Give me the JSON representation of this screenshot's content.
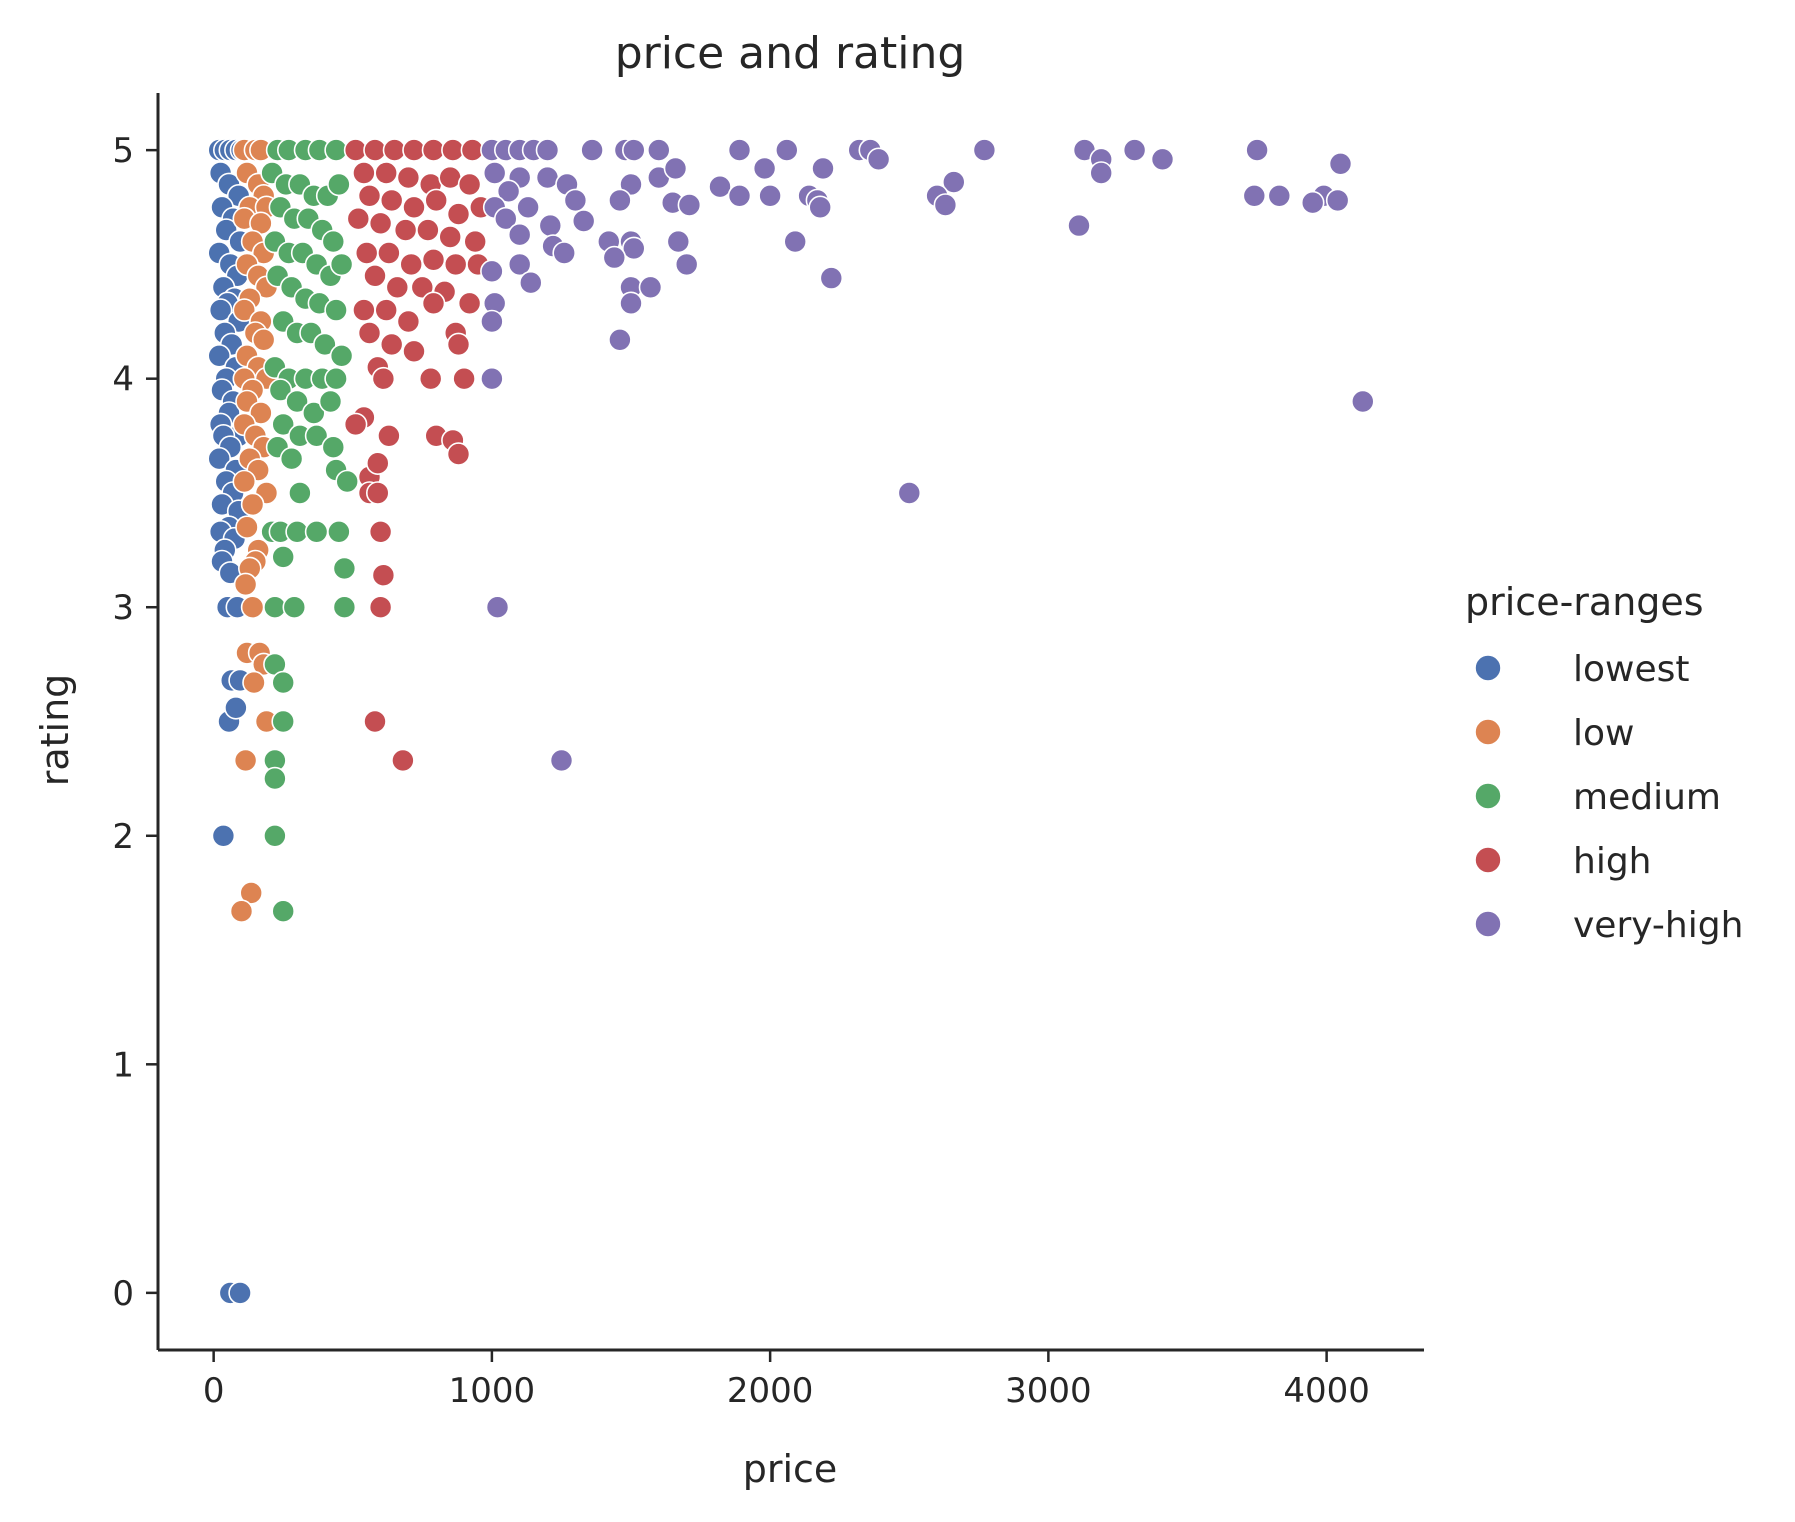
{
  "chart_data": {
    "type": "scatter",
    "title": "price and rating",
    "xlabel": "price",
    "ylabel": "rating",
    "xlim": [
      -200,
      4350
    ],
    "ylim": [
      -0.25,
      5.25
    ],
    "xticks": [
      0,
      1000,
      2000,
      3000,
      4000
    ],
    "xtick_labels": [
      "0",
      "1000",
      "2000",
      "3000",
      "4000"
    ],
    "yticks": [
      0,
      1,
      2,
      3,
      4,
      5
    ],
    "ytick_labels": [
      "0",
      "1",
      "2",
      "3",
      "4",
      "5"
    ],
    "grid": false,
    "legend": {
      "title": "price-ranges",
      "placement": "outside-right"
    },
    "series": [
      {
        "name": "lowest",
        "color": "#4c72b0",
        "points": [
          [
            20,
            5.0
          ],
          [
            40,
            5.0
          ],
          [
            60,
            5.0
          ],
          [
            80,
            5.0
          ],
          [
            100,
            5.0
          ],
          [
            25,
            4.9
          ],
          [
            55,
            4.85
          ],
          [
            90,
            4.8
          ],
          [
            30,
            4.75
          ],
          [
            70,
            4.7
          ],
          [
            45,
            4.65
          ],
          [
            95,
            4.6
          ],
          [
            20,
            4.55
          ],
          [
            60,
            4.5
          ],
          [
            85,
            4.45
          ],
          [
            35,
            4.4
          ],
          [
            75,
            4.35
          ],
          [
            50,
            4.33
          ],
          [
            25,
            4.3
          ],
          [
            90,
            4.25
          ],
          [
            40,
            4.2
          ],
          [
            65,
            4.15
          ],
          [
            20,
            4.1
          ],
          [
            80,
            4.05
          ],
          [
            45,
            4.0
          ],
          [
            30,
            3.95
          ],
          [
            70,
            3.9
          ],
          [
            55,
            3.85
          ],
          [
            25,
            3.8
          ],
          [
            90,
            3.75
          ],
          [
            35,
            3.75
          ],
          [
            60,
            3.7
          ],
          [
            20,
            3.65
          ],
          [
            80,
            3.6
          ],
          [
            45,
            3.55
          ],
          [
            70,
            3.5
          ],
          [
            30,
            3.45
          ],
          [
            90,
            3.42
          ],
          [
            55,
            3.35
          ],
          [
            25,
            3.33
          ],
          [
            75,
            3.3
          ],
          [
            40,
            3.25
          ],
          [
            30,
            3.2
          ],
          [
            60,
            3.15
          ],
          [
            50,
            3.0
          ],
          [
            85,
            3.0
          ],
          [
            65,
            2.68
          ],
          [
            95,
            2.68
          ],
          [
            55,
            2.5
          ],
          [
            80,
            2.56
          ],
          [
            35,
            2.0
          ],
          [
            60,
            0.0
          ],
          [
            95,
            0.0
          ]
        ]
      },
      {
        "name": "low",
        "color": "#dd8452",
        "points": [
          [
            110,
            5.0
          ],
          [
            150,
            5.0
          ],
          [
            170,
            5.0
          ],
          [
            120,
            4.9
          ],
          [
            160,
            4.85
          ],
          [
            180,
            4.8
          ],
          [
            130,
            4.75
          ],
          [
            190,
            4.75
          ],
          [
            110,
            4.7
          ],
          [
            170,
            4.68
          ],
          [
            140,
            4.6
          ],
          [
            180,
            4.55
          ],
          [
            120,
            4.5
          ],
          [
            160,
            4.45
          ],
          [
            190,
            4.4
          ],
          [
            130,
            4.35
          ],
          [
            110,
            4.3
          ],
          [
            170,
            4.25
          ],
          [
            150,
            4.2
          ],
          [
            180,
            4.17
          ],
          [
            120,
            4.1
          ],
          [
            160,
            4.05
          ],
          [
            110,
            4.0
          ],
          [
            190,
            4.0
          ],
          [
            140,
            3.95
          ],
          [
            120,
            3.9
          ],
          [
            170,
            3.85
          ],
          [
            110,
            3.8
          ],
          [
            150,
            3.75
          ],
          [
            180,
            3.7
          ],
          [
            130,
            3.65
          ],
          [
            160,
            3.6
          ],
          [
            110,
            3.55
          ],
          [
            190,
            3.5
          ],
          [
            140,
            3.45
          ],
          [
            120,
            3.35
          ],
          [
            160,
            3.25
          ],
          [
            150,
            3.2
          ],
          [
            130,
            3.17
          ],
          [
            115,
            3.1
          ],
          [
            140,
            3.0
          ],
          [
            120,
            2.8
          ],
          [
            165,
            2.8
          ],
          [
            180,
            2.75
          ],
          [
            145,
            2.67
          ],
          [
            190,
            2.5
          ],
          [
            115,
            2.33
          ],
          [
            135,
            1.75
          ],
          [
            100,
            1.67
          ]
        ]
      },
      {
        "name": "medium",
        "color": "#55a868",
        "points": [
          [
            230,
            5.0
          ],
          [
            270,
            5.0
          ],
          [
            330,
            5.0
          ],
          [
            380,
            5.0
          ],
          [
            440,
            5.0
          ],
          [
            210,
            4.9
          ],
          [
            260,
            4.85
          ],
          [
            310,
            4.85
          ],
          [
            360,
            4.8
          ],
          [
            410,
            4.8
          ],
          [
            450,
            4.85
          ],
          [
            240,
            4.75
          ],
          [
            290,
            4.7
          ],
          [
            340,
            4.7
          ],
          [
            390,
            4.65
          ],
          [
            430,
            4.6
          ],
          [
            220,
            4.6
          ],
          [
            270,
            4.55
          ],
          [
            320,
            4.55
          ],
          [
            370,
            4.5
          ],
          [
            420,
            4.45
          ],
          [
            460,
            4.5
          ],
          [
            230,
            4.45
          ],
          [
            280,
            4.4
          ],
          [
            330,
            4.35
          ],
          [
            380,
            4.33
          ],
          [
            440,
            4.3
          ],
          [
            250,
            4.25
          ],
          [
            300,
            4.2
          ],
          [
            350,
            4.2
          ],
          [
            400,
            4.15
          ],
          [
            460,
            4.1
          ],
          [
            220,
            4.05
          ],
          [
            270,
            4.0
          ],
          [
            330,
            4.0
          ],
          [
            390,
            4.0
          ],
          [
            440,
            4.0
          ],
          [
            240,
            3.95
          ],
          [
            300,
            3.9
          ],
          [
            360,
            3.85
          ],
          [
            420,
            3.9
          ],
          [
            250,
            3.8
          ],
          [
            310,
            3.75
          ],
          [
            370,
            3.75
          ],
          [
            430,
            3.7
          ],
          [
            230,
            3.7
          ],
          [
            280,
            3.65
          ],
          [
            440,
            3.6
          ],
          [
            480,
            3.55
          ],
          [
            310,
            3.5
          ],
          [
            210,
            3.33
          ],
          [
            240,
            3.33
          ],
          [
            300,
            3.33
          ],
          [
            370,
            3.33
          ],
          [
            450,
            3.33
          ],
          [
            470,
            3.17
          ],
          [
            250,
            3.22
          ],
          [
            220,
            3.0
          ],
          [
            290,
            3.0
          ],
          [
            470,
            3.0
          ],
          [
            220,
            2.75
          ],
          [
            250,
            2.67
          ],
          [
            250,
            2.5
          ],
          [
            220,
            2.33
          ],
          [
            220,
            2.25
          ],
          [
            220,
            2.0
          ],
          [
            250,
            1.67
          ]
        ]
      },
      {
        "name": "high",
        "color": "#c44e52",
        "points": [
          [
            510,
            5.0
          ],
          [
            580,
            5.0
          ],
          [
            650,
            5.0
          ],
          [
            720,
            5.0
          ],
          [
            790,
            5.0
          ],
          [
            860,
            5.0
          ],
          [
            930,
            5.0
          ],
          [
            540,
            4.9
          ],
          [
            620,
            4.9
          ],
          [
            700,
            4.88
          ],
          [
            780,
            4.85
          ],
          [
            850,
            4.88
          ],
          [
            920,
            4.85
          ],
          [
            560,
            4.8
          ],
          [
            640,
            4.78
          ],
          [
            720,
            4.75
          ],
          [
            800,
            4.78
          ],
          [
            880,
            4.72
          ],
          [
            960,
            4.75
          ],
          [
            520,
            4.7
          ],
          [
            600,
            4.68
          ],
          [
            690,
            4.65
          ],
          [
            770,
            4.65
          ],
          [
            850,
            4.62
          ],
          [
            940,
            4.6
          ],
          [
            550,
            4.55
          ],
          [
            630,
            4.55
          ],
          [
            710,
            4.5
          ],
          [
            790,
            4.52
          ],
          [
            870,
            4.5
          ],
          [
            950,
            4.5
          ],
          [
            580,
            4.45
          ],
          [
            660,
            4.4
          ],
          [
            750,
            4.4
          ],
          [
            830,
            4.38
          ],
          [
            920,
            4.33
          ],
          [
            540,
            4.3
          ],
          [
            620,
            4.3
          ],
          [
            700,
            4.25
          ],
          [
            790,
            4.33
          ],
          [
            870,
            4.2
          ],
          [
            560,
            4.2
          ],
          [
            640,
            4.15
          ],
          [
            720,
            4.12
          ],
          [
            880,
            4.15
          ],
          [
            590,
            4.05
          ],
          [
            610,
            4.0
          ],
          [
            780,
            4.0
          ],
          [
            900,
            4.0
          ],
          [
            540,
            3.83
          ],
          [
            510,
            3.8
          ],
          [
            630,
            3.75
          ],
          [
            800,
            3.75
          ],
          [
            860,
            3.73
          ],
          [
            880,
            3.67
          ],
          [
            560,
            3.57
          ],
          [
            590,
            3.63
          ],
          [
            560,
            3.5
          ],
          [
            590,
            3.5
          ],
          [
            600,
            3.33
          ],
          [
            610,
            3.14
          ],
          [
            600,
            3.0
          ],
          [
            580,
            2.5
          ],
          [
            680,
            2.33
          ]
        ]
      },
      {
        "name": "very-high",
        "color": "#8172b3",
        "points": [
          [
            1000,
            5.0
          ],
          [
            1050,
            5.0
          ],
          [
            1100,
            5.0
          ],
          [
            1150,
            5.0
          ],
          [
            1200,
            5.0
          ],
          [
            1360,
            5.0
          ],
          [
            1480,
            5.0
          ],
          [
            1510,
            5.0
          ],
          [
            1600,
            5.0
          ],
          [
            1890,
            5.0
          ],
          [
            2060,
            5.0
          ],
          [
            2320,
            5.0
          ],
          [
            2360,
            5.0
          ],
          [
            2770,
            5.0
          ],
          [
            3130,
            5.0
          ],
          [
            3310,
            5.0
          ],
          [
            3750,
            5.0
          ],
          [
            2390,
            4.96
          ],
          [
            3190,
            4.96
          ],
          [
            3410,
            4.96
          ],
          [
            4050,
            4.94
          ],
          [
            1980,
            4.92
          ],
          [
            2190,
            4.92
          ],
          [
            1010,
            4.9
          ],
          [
            1100,
            4.88
          ],
          [
            1200,
            4.88
          ],
          [
            1600,
            4.88
          ],
          [
            1660,
            4.92
          ],
          [
            3190,
            4.9
          ],
          [
            2660,
            4.86
          ],
          [
            1060,
            4.82
          ],
          [
            1270,
            4.85
          ],
          [
            1500,
            4.85
          ],
          [
            1820,
            4.84
          ],
          [
            1890,
            4.8
          ],
          [
            2000,
            4.8
          ],
          [
            2140,
            4.8
          ],
          [
            2170,
            4.78
          ],
          [
            2600,
            4.8
          ],
          [
            3740,
            4.8
          ],
          [
            3830,
            4.8
          ],
          [
            3990,
            4.8
          ],
          [
            1010,
            4.75
          ],
          [
            1130,
            4.75
          ],
          [
            1300,
            4.78
          ],
          [
            1460,
            4.78
          ],
          [
            1650,
            4.77
          ],
          [
            1710,
            4.76
          ],
          [
            2180,
            4.75
          ],
          [
            2630,
            4.76
          ],
          [
            3950,
            4.77
          ],
          [
            4040,
            4.78
          ],
          [
            1050,
            4.7
          ],
          [
            1210,
            4.67
          ],
          [
            1330,
            4.69
          ],
          [
            3110,
            4.67
          ],
          [
            1100,
            4.63
          ],
          [
            1420,
            4.6
          ],
          [
            1670,
            4.6
          ],
          [
            2090,
            4.6
          ],
          [
            1220,
            4.58
          ],
          [
            1500,
            4.6
          ],
          [
            1510,
            4.57
          ],
          [
            1260,
            4.55
          ],
          [
            1440,
            4.53
          ],
          [
            1100,
            4.5
          ],
          [
            1700,
            4.5
          ],
          [
            1000,
            4.47
          ],
          [
            2220,
            4.44
          ],
          [
            1140,
            4.42
          ],
          [
            1500,
            4.4
          ],
          [
            1570,
            4.4
          ],
          [
            1010,
            4.33
          ],
          [
            1500,
            4.33
          ],
          [
            1000,
            4.25
          ],
          [
            1460,
            4.17
          ],
          [
            1000,
            4.0
          ],
          [
            4130,
            3.9
          ],
          [
            2500,
            3.5
          ],
          [
            1020,
            3.0
          ],
          [
            1250,
            2.33
          ]
        ]
      }
    ]
  }
}
